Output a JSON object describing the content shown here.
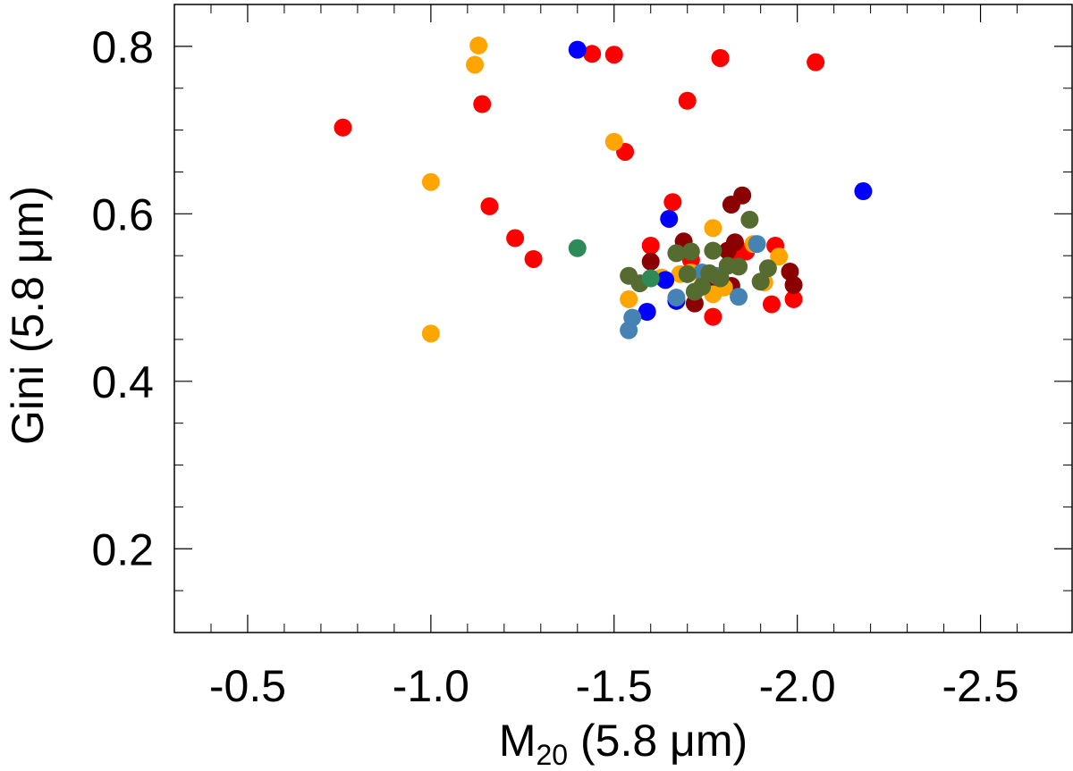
{
  "chart_data": {
    "type": "scatter",
    "xlabel_main": "M",
    "xlabel_sub": "20",
    "xlabel_rest": " (5.8 μm)",
    "ylabel": "Gini (5.8 μm)",
    "xlim": [
      -0.3,
      -2.75
    ],
    "ylim": [
      0.1,
      0.85
    ],
    "x_ticks": [
      -0.5,
      -1.0,
      -1.5,
      -2.0,
      -2.5
    ],
    "x_tick_labels": [
      "-0.5",
      "-1.0",
      "-1.5",
      "-2.0",
      "-2.5"
    ],
    "y_ticks": [
      0.2,
      0.4,
      0.6,
      0.8
    ],
    "y_tick_labels": [
      "0.2",
      "0.4",
      "0.6",
      "0.8"
    ],
    "series": [
      {
        "name": "red",
        "color": "#ff0000",
        "points": [
          [
            -0.76,
            0.703
          ],
          [
            -1.14,
            0.731
          ],
          [
            -1.16,
            0.609
          ],
          [
            -1.44,
            0.791
          ],
          [
            -1.79,
            0.786
          ],
          [
            -1.7,
            0.735
          ],
          [
            -1.53,
            0.674
          ],
          [
            -1.23,
            0.571
          ],
          [
            -1.28,
            0.546
          ],
          [
            -1.6,
            0.562
          ],
          [
            -1.66,
            0.614
          ],
          [
            -1.71,
            0.545
          ],
          [
            -1.74,
            0.529
          ],
          [
            -1.77,
            0.477
          ],
          [
            -1.82,
            0.548
          ],
          [
            -1.86,
            0.555
          ],
          [
            -1.94,
            0.562
          ],
          [
            -1.93,
            0.492
          ],
          [
            -1.99,
            0.498
          ],
          [
            -2.05,
            0.781
          ],
          [
            -1.79,
            0.786
          ],
          [
            -1.5,
            0.79
          ]
        ]
      },
      {
        "name": "darkred",
        "color": "#8b0000",
        "points": [
          [
            -1.85,
            0.622
          ],
          [
            -1.82,
            0.611
          ],
          [
            -1.69,
            0.567
          ],
          [
            -1.6,
            0.543
          ],
          [
            -1.81,
            0.556
          ],
          [
            -1.83,
            0.566
          ],
          [
            -1.72,
            0.493
          ],
          [
            -1.76,
            0.515
          ],
          [
            -1.82,
            0.514
          ],
          [
            -1.98,
            0.531
          ],
          [
            -1.99,
            0.515
          ]
        ]
      },
      {
        "name": "orange",
        "color": "#ffa500",
        "points": [
          [
            -1.12,
            0.778
          ],
          [
            -1.13,
            0.801
          ],
          [
            -1.5,
            0.686
          ],
          [
            -1.0,
            0.638
          ],
          [
            -1.0,
            0.457
          ],
          [
            -1.54,
            0.498
          ],
          [
            -1.63,
            0.524
          ],
          [
            -1.68,
            0.528
          ],
          [
            -1.71,
            0.53
          ],
          [
            -1.77,
            0.583
          ],
          [
            -1.77,
            0.504
          ],
          [
            -1.88,
            0.564
          ],
          [
            -1.91,
            0.518
          ],
          [
            -1.95,
            0.549
          ],
          [
            -1.8,
            0.512
          ]
        ]
      },
      {
        "name": "blue",
        "color": "#0000ff",
        "points": [
          [
            -1.4,
            0.796
          ],
          [
            -1.65,
            0.594
          ],
          [
            -1.59,
            0.483
          ],
          [
            -1.67,
            0.496
          ],
          [
            -1.64,
            0.521
          ],
          [
            -2.18,
            0.627
          ]
        ]
      },
      {
        "name": "steelblue",
        "color": "#4682b4",
        "points": [
          [
            -1.54,
            0.461
          ],
          [
            -1.55,
            0.476
          ],
          [
            -1.67,
            0.5
          ],
          [
            -1.74,
            0.53
          ],
          [
            -1.84,
            0.501
          ],
          [
            -1.89,
            0.564
          ],
          [
            -1.78,
            0.526
          ]
        ]
      },
      {
        "name": "olive",
        "color": "#556b2f",
        "points": [
          [
            -1.54,
            0.526
          ],
          [
            -1.57,
            0.517
          ],
          [
            -1.67,
            0.553
          ],
          [
            -1.71,
            0.555
          ],
          [
            -1.77,
            0.556
          ],
          [
            -1.72,
            0.507
          ],
          [
            -1.74,
            0.513
          ],
          [
            -1.79,
            0.523
          ],
          [
            -1.81,
            0.538
          ],
          [
            -1.84,
            0.537
          ],
          [
            -1.87,
            0.593
          ],
          [
            -1.9,
            0.519
          ],
          [
            -1.92,
            0.535
          ],
          [
            -1.76,
            0.529
          ],
          [
            -1.7,
            0.528
          ]
        ]
      },
      {
        "name": "seagreen",
        "color": "#2e8b57",
        "points": [
          [
            -1.4,
            0.559
          ],
          [
            -1.6,
            0.523
          ]
        ]
      }
    ]
  }
}
